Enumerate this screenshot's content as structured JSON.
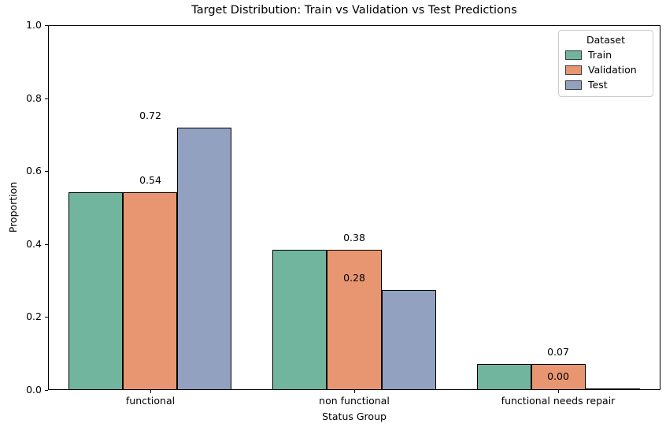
{
  "chart_data": {
    "type": "bar",
    "title": "Target Distribution: Train vs Validation vs Test Predictions",
    "xlabel": "Status Group",
    "ylabel": "Proportion",
    "ylim": [
      0,
      1.0
    ],
    "yticks": [
      0.0,
      0.2,
      0.4,
      0.6,
      0.8,
      1.0
    ],
    "grid": false,
    "categories": [
      "functional",
      "non functional",
      "functional needs repair"
    ],
    "series": [
      {
        "name": "Train",
        "color": "#71b59e",
        "values": [
          0.543,
          0.384,
          0.072
        ]
      },
      {
        "name": "Validation",
        "color": "#e89672",
        "values": [
          0.543,
          0.384,
          0.072
        ]
      },
      {
        "name": "Test",
        "color": "#93a1c1",
        "values": [
          0.72,
          0.275,
          0.005
        ]
      }
    ],
    "bar_edge_color": "#000000",
    "annotations": [
      {
        "category": "functional",
        "series": "Validation",
        "text": "0.54"
      },
      {
        "category": "functional",
        "series": "Test",
        "text": "0.72"
      },
      {
        "category": "non functional",
        "series": "Validation",
        "text": "0.38"
      },
      {
        "category": "non functional",
        "series": "Test",
        "text": "0.28"
      },
      {
        "category": "functional needs repair",
        "series": "Validation",
        "text": "0.07"
      },
      {
        "category": "functional needs repair",
        "series": "Test",
        "text": "0.00"
      }
    ],
    "legend": {
      "title": "Dataset",
      "position": "upper right",
      "entries": [
        "Train",
        "Validation",
        "Test"
      ]
    }
  }
}
